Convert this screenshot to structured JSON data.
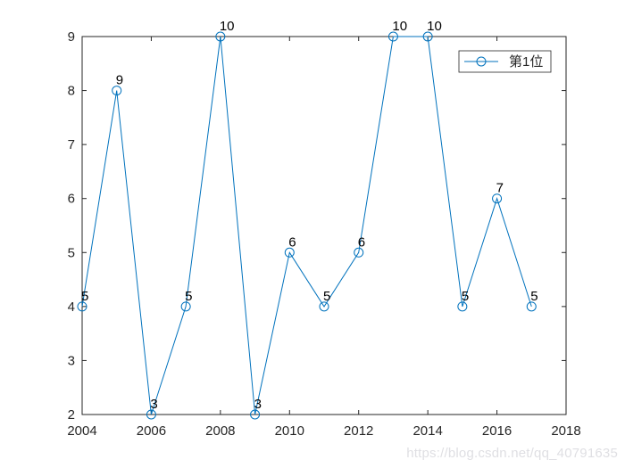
{
  "figure": {
    "background": "#ffffff",
    "watermark": "https://blog.csdn.net/qq_40791635"
  },
  "chart_data": {
    "type": "line",
    "title": "",
    "xlabel": "",
    "ylabel": "",
    "xlim": [
      2004,
      2018
    ],
    "ylim": [
      2,
      9
    ],
    "xticks": [
      2004,
      2006,
      2008,
      2010,
      2012,
      2014,
      2016,
      2018
    ],
    "yticks": [
      2,
      3,
      4,
      5,
      6,
      7,
      8,
      9
    ],
    "grid": false,
    "box": true,
    "tick_direction": "in",
    "axis_color": "#262626",
    "tick_label_color": "#262626",
    "point_label_color": "#000000",
    "series": [
      {
        "name": "第1位",
        "x": [
          2004,
          2005,
          2006,
          2007,
          2008,
          2009,
          2010,
          2011,
          2012,
          2013,
          2014,
          2015,
          2016,
          2017
        ],
        "values": [
          4,
          8,
          2,
          4,
          9,
          2,
          5,
          4,
          5,
          9,
          9,
          4,
          6,
          4
        ],
        "point_labels": [
          "5",
          "9",
          "3",
          "5",
          "10",
          "3",
          "6",
          "5",
          "6",
          "10",
          "10",
          "5",
          "7",
          "5"
        ],
        "color": "#0072BD",
        "marker": "open-circle"
      }
    ],
    "legend": {
      "position": "top-right",
      "border_color": "#262626",
      "background": "#ffffff",
      "entries": [
        "第1位"
      ]
    }
  }
}
